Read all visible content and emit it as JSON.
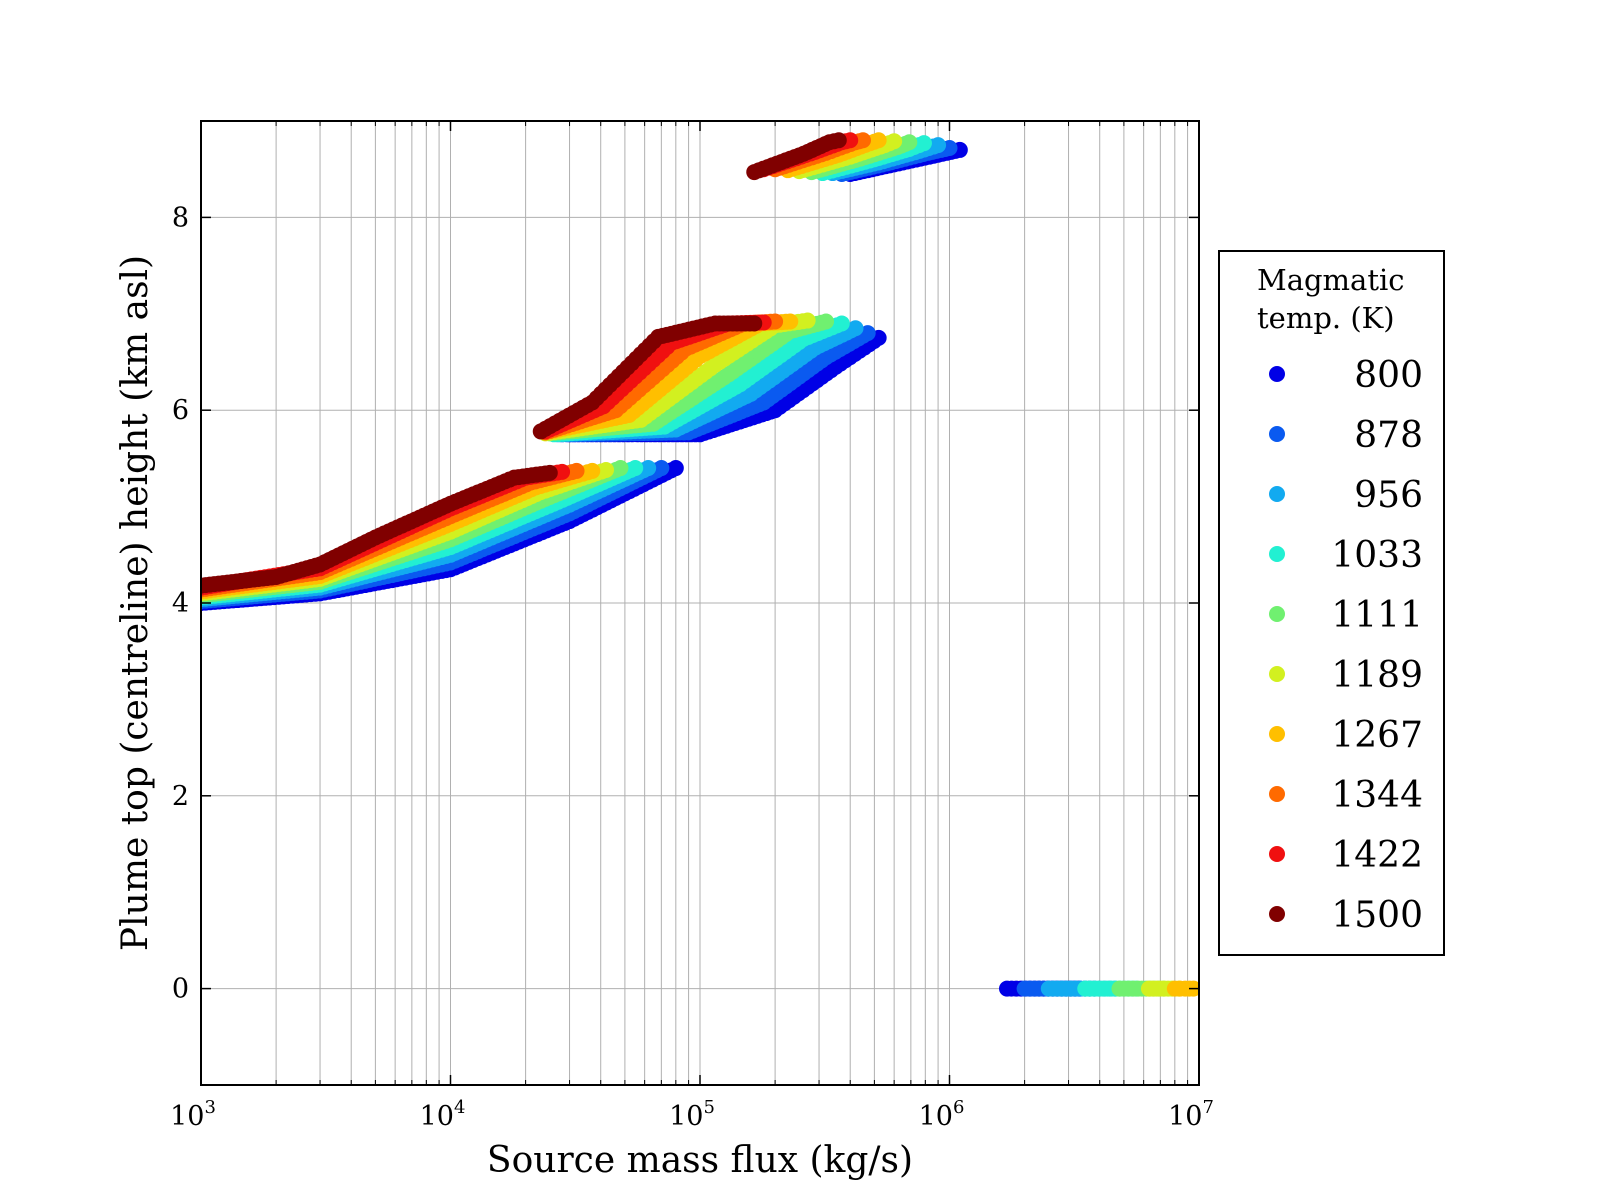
{
  "chart_data": {
    "type": "scatter",
    "title": "",
    "xlabel": "Source mass flux (kg/s)",
    "ylabel": "Plume top (centreline) height (km asl)",
    "xscale": "log",
    "xlim": [
      1000,
      10000000
    ],
    "ylim": [
      -1,
      9
    ],
    "grid": true,
    "x_ticks": [
      {
        "value": 1000,
        "base": "10",
        "exp": "3"
      },
      {
        "value": 10000,
        "base": "10",
        "exp": "4"
      },
      {
        "value": 100000,
        "base": "10",
        "exp": "5"
      },
      {
        "value": 1000000,
        "base": "10",
        "exp": "6"
      },
      {
        "value": 10000000,
        "base": "10",
        "exp": "7"
      }
    ],
    "y_ticks": [
      {
        "value": 0,
        "label": "0"
      },
      {
        "value": 2,
        "label": "2"
      },
      {
        "value": 4,
        "label": "4"
      },
      {
        "value": 6,
        "label": "6"
      },
      {
        "value": 8,
        "label": "8"
      }
    ],
    "legend": {
      "title_lines": [
        "Magmatic",
        "temp. (K)"
      ],
      "location": "outside-right",
      "entries": [
        {
          "label": "800",
          "color": "#0000e6"
        },
        {
          "label": "878",
          "color": "#0a5af0"
        },
        {
          "label": "956",
          "color": "#12aaf0"
        },
        {
          "label": "1033",
          "color": "#22f0d2"
        },
        {
          "label": "1111",
          "color": "#70f070"
        },
        {
          "label": "1189",
          "color": "#d2f020"
        },
        {
          "label": "1267",
          "color": "#ffbf00"
        },
        {
          "label": "1344",
          "color": "#ff6a00"
        },
        {
          "label": "1422",
          "color": "#f01010"
        },
        {
          "label": "1500",
          "color": "#800000"
        }
      ]
    },
    "series": [
      {
        "name": "800",
        "groups": [
          {
            "x": [
              1000,
              3000,
              10000,
              30000,
              80000
            ],
            "y": [
              4.0,
              4.1,
              4.35,
              4.85,
              5.4
            ]
          },
          {
            "x": [
              30000,
              100000,
              200000,
              350000,
              520000
            ],
            "y": [
              5.75,
              5.75,
              6.0,
              6.45,
              6.75
            ]
          },
          {
            "x": [
              400000,
              600000,
              900000,
              1100000
            ],
            "y": [
              8.45,
              8.55,
              8.65,
              8.7
            ]
          },
          {
            "x": [
              1700000,
              2200000,
              2800000,
              3300000
            ],
            "y": [
              0,
              0,
              0,
              0
            ]
          }
        ]
      },
      {
        "name": "878",
        "groups": [
          {
            "x": [
              1000,
              3000,
              10000,
              30000,
              70000
            ],
            "y": [
              4.02,
              4.13,
              4.42,
              4.93,
              5.4
            ]
          },
          {
            "x": [
              28000,
              90000,
              180000,
              320000,
              470000
            ],
            "y": [
              5.75,
              5.77,
              6.08,
              6.55,
              6.8
            ]
          },
          {
            "x": [
              370000,
              560000,
              820000,
              1000000
            ],
            "y": [
              8.45,
              8.56,
              8.67,
              8.72
            ]
          },
          {
            "x": [
              2000000,
              2600000,
              3200000,
              3800000
            ],
            "y": [
              0,
              0,
              0,
              0
            ]
          }
        ]
      },
      {
        "name": "956",
        "groups": [
          {
            "x": [
              1000,
              3000,
              10000,
              30000,
              62000
            ],
            "y": [
              4.04,
              4.16,
              4.5,
              5.02,
              5.4
            ]
          },
          {
            "x": [
              27000,
              80000,
              160000,
              290000,
              420000
            ],
            "y": [
              5.75,
              5.8,
              6.17,
              6.65,
              6.85
            ]
          },
          {
            "x": [
              340000,
              520000,
              760000,
              900000
            ],
            "y": [
              8.46,
              8.57,
              8.69,
              8.75
            ]
          },
          {
            "x": [
              2500000,
              3200000,
              4000000,
              4600000
            ],
            "y": [
              0,
              0,
              0,
              0
            ]
          }
        ]
      },
      {
        "name": "1033",
        "groups": [
          {
            "x": [
              1000,
              3000,
              10000,
              27000,
              55000
            ],
            "y": [
              4.06,
              4.19,
              4.58,
              5.05,
              5.4
            ]
          },
          {
            "x": [
              26000,
              72000,
              145000,
              260000,
              370000
            ],
            "y": [
              5.75,
              5.83,
              6.27,
              6.74,
              6.9
            ]
          },
          {
            "x": [
              310000,
              480000,
              690000,
              790000
            ],
            "y": [
              8.46,
              8.59,
              8.71,
              8.77
            ]
          },
          {
            "x": [
              3500000,
              4300000,
              5000000,
              5600000
            ],
            "y": [
              0,
              0,
              0,
              0
            ]
          }
        ]
      },
      {
        "name": "1111",
        "groups": [
          {
            "x": [
              1000,
              3000,
              10000,
              25000,
              48000
            ],
            "y": [
              4.08,
              4.22,
              4.66,
              5.1,
              5.4
            ]
          },
          {
            "x": [
              25000,
              65000,
              130000,
              230000,
              320000
            ],
            "y": [
              5.76,
              5.86,
              6.37,
              6.82,
              6.92
            ]
          },
          {
            "x": [
              280000,
              440000,
              620000,
              690000
            ],
            "y": [
              8.47,
              8.61,
              8.73,
              8.78
            ]
          },
          {
            "x": [
              4800000,
              5700000,
              6600000,
              7200000
            ],
            "y": [
              0,
              0,
              0,
              0
            ]
          }
        ]
      },
      {
        "name": "1189",
        "groups": [
          {
            "x": [
              1000,
              3000,
              10000,
              23000,
              42000
            ],
            "y": [
              4.1,
              4.25,
              4.74,
              5.15,
              5.38
            ]
          },
          {
            "x": [
              24000,
              58000,
              115000,
              200000,
              270000
            ],
            "y": [
              5.76,
              5.9,
              6.47,
              6.88,
              6.93
            ]
          },
          {
            "x": [
              250000,
              400000,
              550000,
              600000
            ],
            "y": [
              8.48,
              8.63,
              8.75,
              8.79
            ]
          },
          {
            "x": [
              6300000,
              7000000,
              7800000,
              8300000
            ],
            "y": [
              0,
              0,
              0,
              0
            ]
          }
        ]
      },
      {
        "name": "1267",
        "groups": [
          {
            "x": [
              1000,
              3000,
              10000,
              22000,
              37000
            ],
            "y": [
              4.12,
              4.28,
              4.82,
              5.2,
              5.37
            ]
          },
          {
            "x": [
              24000,
              52000,
              100000,
              175000,
              230000
            ],
            "y": [
              5.77,
              5.95,
              6.56,
              6.9,
              6.92
            ]
          },
          {
            "x": [
              225000,
              360000,
              480000,
              520000
            ],
            "y": [
              8.49,
              8.65,
              8.77,
              8.8
            ]
          },
          {
            "x": [
              8000000,
              8800000,
              9500000
            ],
            "y": [
              0,
              0,
              0
            ]
          }
        ]
      },
      {
        "name": "1344",
        "groups": [
          {
            "x": [
              1000,
              3000,
              10000,
              21000,
              32000
            ],
            "y": [
              4.14,
              4.32,
              4.9,
              5.25,
              5.37
            ]
          },
          {
            "x": [
              24000,
              46000,
              88000,
              150000,
              200000
            ],
            "y": [
              5.77,
              6.0,
              6.64,
              6.9,
              6.92
            ]
          },
          {
            "x": [
              200000,
              320000,
              420000,
              450000
            ],
            "y": [
              8.5,
              8.67,
              8.78,
              8.8
            ]
          }
        ]
      },
      {
        "name": "1422",
        "groups": [
          {
            "x": [
              1000,
              3000,
              10000,
              20000,
              28000
            ],
            "y": [
              4.16,
              4.36,
              4.98,
              5.3,
              5.36
            ]
          },
          {
            "x": [
              24000,
              41000,
              77000,
              130000,
              180000
            ],
            "y": [
              5.78,
              6.04,
              6.7,
              6.9,
              6.91
            ]
          },
          {
            "x": [
              180000,
              290000,
              370000,
              400000
            ],
            "y": [
              8.5,
              8.68,
              8.78,
              8.8
            ]
          }
        ]
      },
      {
        "name": "1500",
        "groups": [
          {
            "x": [
              1000,
              2000,
              3000,
              5000,
              10000,
              18000,
              25000
            ],
            "y": [
              4.18,
              4.27,
              4.4,
              4.68,
              5.03,
              5.3,
              5.35
            ]
          },
          {
            "x": [
              23000,
              37000,
              68000,
              115000,
              165000
            ],
            "y": [
              5.78,
              6.08,
              6.76,
              6.9,
              6.9
            ]
          },
          {
            "x": [
              165000,
              260000,
              330000,
              360000
            ],
            "y": [
              8.47,
              8.66,
              8.78,
              8.8
            ]
          }
        ]
      }
    ]
  }
}
